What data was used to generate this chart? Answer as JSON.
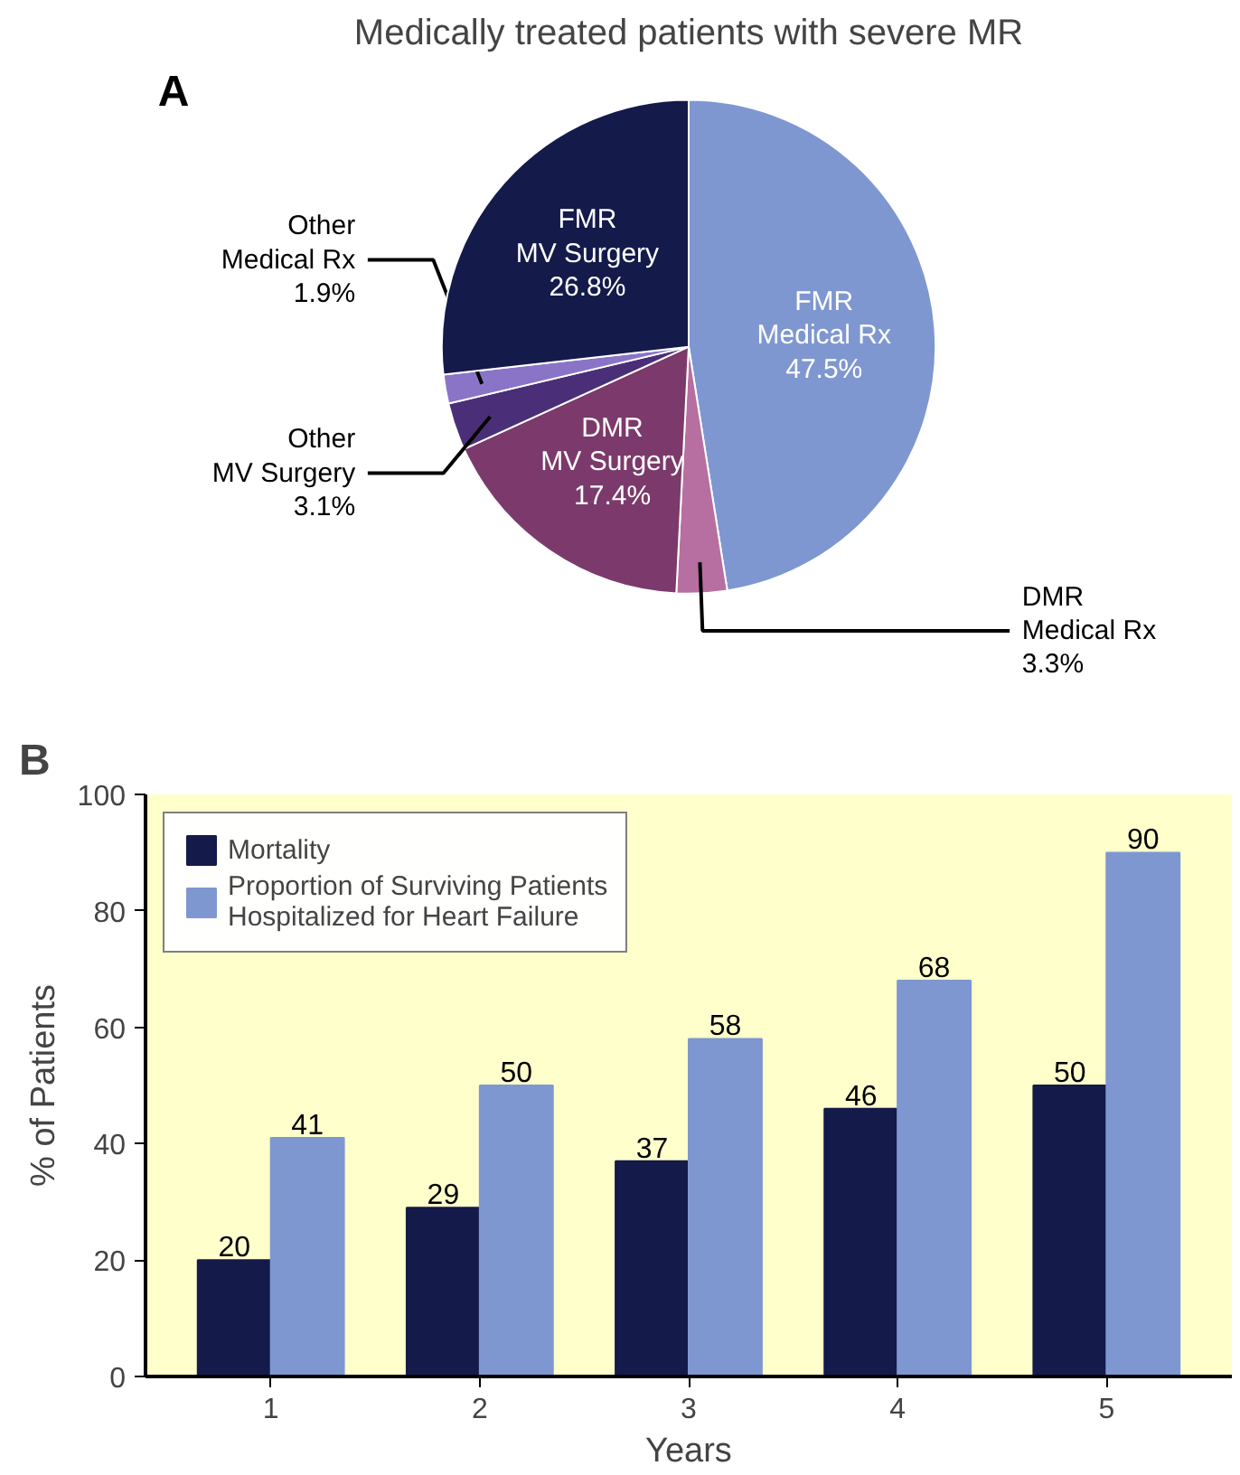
{
  "chart_data": [
    {
      "type": "pie",
      "title": "Medically treated patients with severe MR",
      "annotations": [
        "A"
      ],
      "categories": [
        "FMR\nMedical Rx",
        "DMR\nMedical Rx",
        "DMR\nMV Surgery",
        "Other\nMV Surgery",
        "Other\nMedical Rx",
        "FMR\nMV Surgery"
      ],
      "values": [
        47.5,
        3.3,
        17.4,
        3.1,
        1.9,
        26.8
      ],
      "value_labels": [
        "47.5%",
        "3.3%",
        "17.4%",
        "3.1%",
        "1.9%",
        "26.8%"
      ],
      "colors": [
        "#7f97d0",
        "#b66fa0",
        "#7b3a6b",
        "#4a2f78",
        "#8a74c8",
        "#141a4a"
      ]
    },
    {
      "type": "bar",
      "annotations": [
        "B"
      ],
      "xlabel": "Years",
      "ylabel": "% of Patients",
      "categories": [
        "1",
        "2",
        "3",
        "4",
        "5"
      ],
      "series": [
        {
          "name": "Mortality",
          "color": "#141a4a",
          "values": [
            20,
            29,
            37,
            46,
            50
          ]
        },
        {
          "name": "Proportion of Surviving Patients\nHospitalized for Heart Failure",
          "color": "#7f97d0",
          "values": [
            41,
            50,
            58,
            68,
            90
          ]
        }
      ],
      "ylim": [
        0,
        100
      ],
      "yticks": [
        0,
        20,
        40,
        60,
        80,
        100
      ],
      "grid": false,
      "legend": "top left",
      "data_labels": true
    }
  ]
}
